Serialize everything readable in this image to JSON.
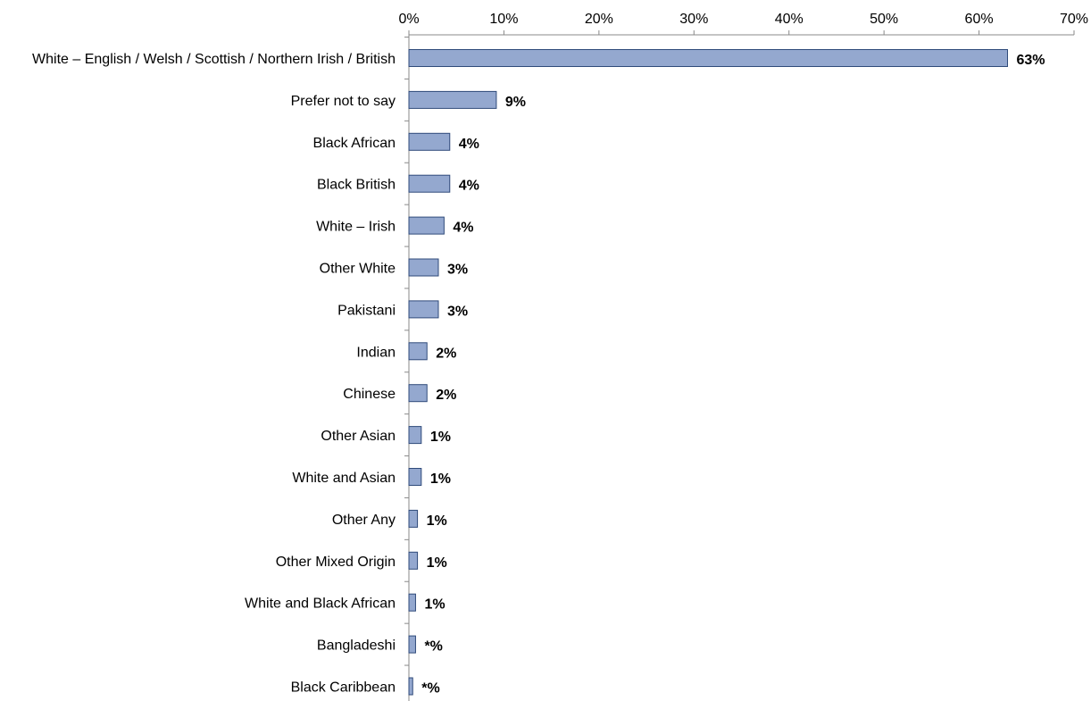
{
  "chart_data": {
    "type": "bar",
    "orientation": "horizontal",
    "categories": [
      "White – English  / Welsh / Scottish / Northern Irish / British",
      "Prefer not to say",
      "Black African",
      "Black British",
      "White – Irish",
      "Other White",
      "Pakistani",
      "Indian",
      "Chinese",
      "Other Asian",
      "White and Asian",
      "Other Any",
      "Other Mixed Origin",
      "White and Black African",
      "Bangladeshi",
      "Black Caribbean"
    ],
    "values": [
      63,
      9.2,
      4.3,
      4.3,
      3.7,
      3.1,
      3.1,
      1.9,
      1.9,
      1.3,
      1.3,
      0.9,
      0.9,
      0.7,
      0.7,
      0.4
    ],
    "data_labels": [
      "63%",
      "9%",
      "4%",
      "4%",
      "4%",
      "3%",
      "3%",
      "2%",
      "2%",
      "1%",
      "1%",
      "1%",
      "1%",
      "1%",
      "*%",
      "*%"
    ],
    "x_ticks": [
      0,
      10,
      20,
      30,
      40,
      50,
      60,
      70
    ],
    "x_tick_labels": [
      "0%",
      "10%",
      "20%",
      "30%",
      "40%",
      "50%",
      "60%",
      "70%"
    ],
    "xlim": [
      0,
      70
    ],
    "x_axis_position": "top",
    "title": "",
    "xlabel": "",
    "ylabel": "",
    "grid": false,
    "legend": "none",
    "bar_color": "#94a8cf",
    "bar_edge_color": "#2f4a7a",
    "axis_color": "#8a8a8a"
  }
}
